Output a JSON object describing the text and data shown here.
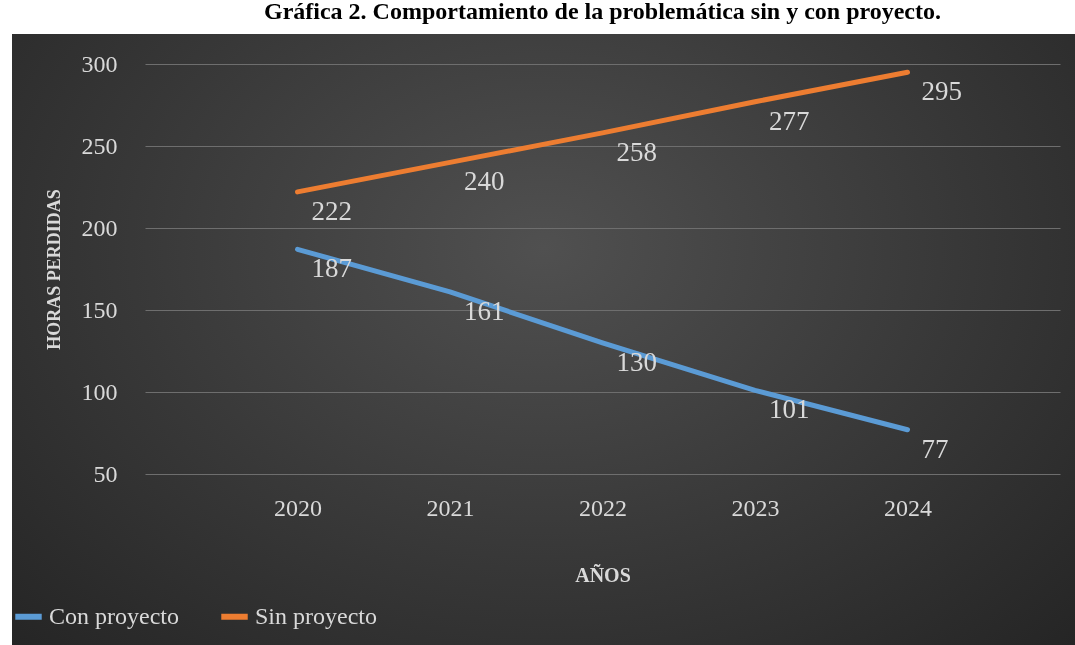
{
  "chart_data": {
    "type": "line",
    "title": "Gráfica 2. Comportamiento de la problemática sin y con proyecto.",
    "xlabel": "AÑOS",
    "ylabel": "HORAS PERDIDAS",
    "categories": [
      "2020",
      "2021",
      "2022",
      "2023",
      "2024"
    ],
    "series": [
      {
        "name": "Con proyecto",
        "color": "#5b9bd5",
        "values": [
          187,
          161,
          130,
          101,
          77
        ]
      },
      {
        "name": "Sin proyecto",
        "color": "#ed7d31",
        "values": [
          222,
          240,
          258,
          277,
          295
        ]
      }
    ],
    "ylim": [
      50,
      300
    ],
    "yticks": [
      50,
      100,
      150,
      200,
      250,
      300
    ],
    "grid": "y",
    "legend": "bottom left",
    "data_labels": true
  }
}
